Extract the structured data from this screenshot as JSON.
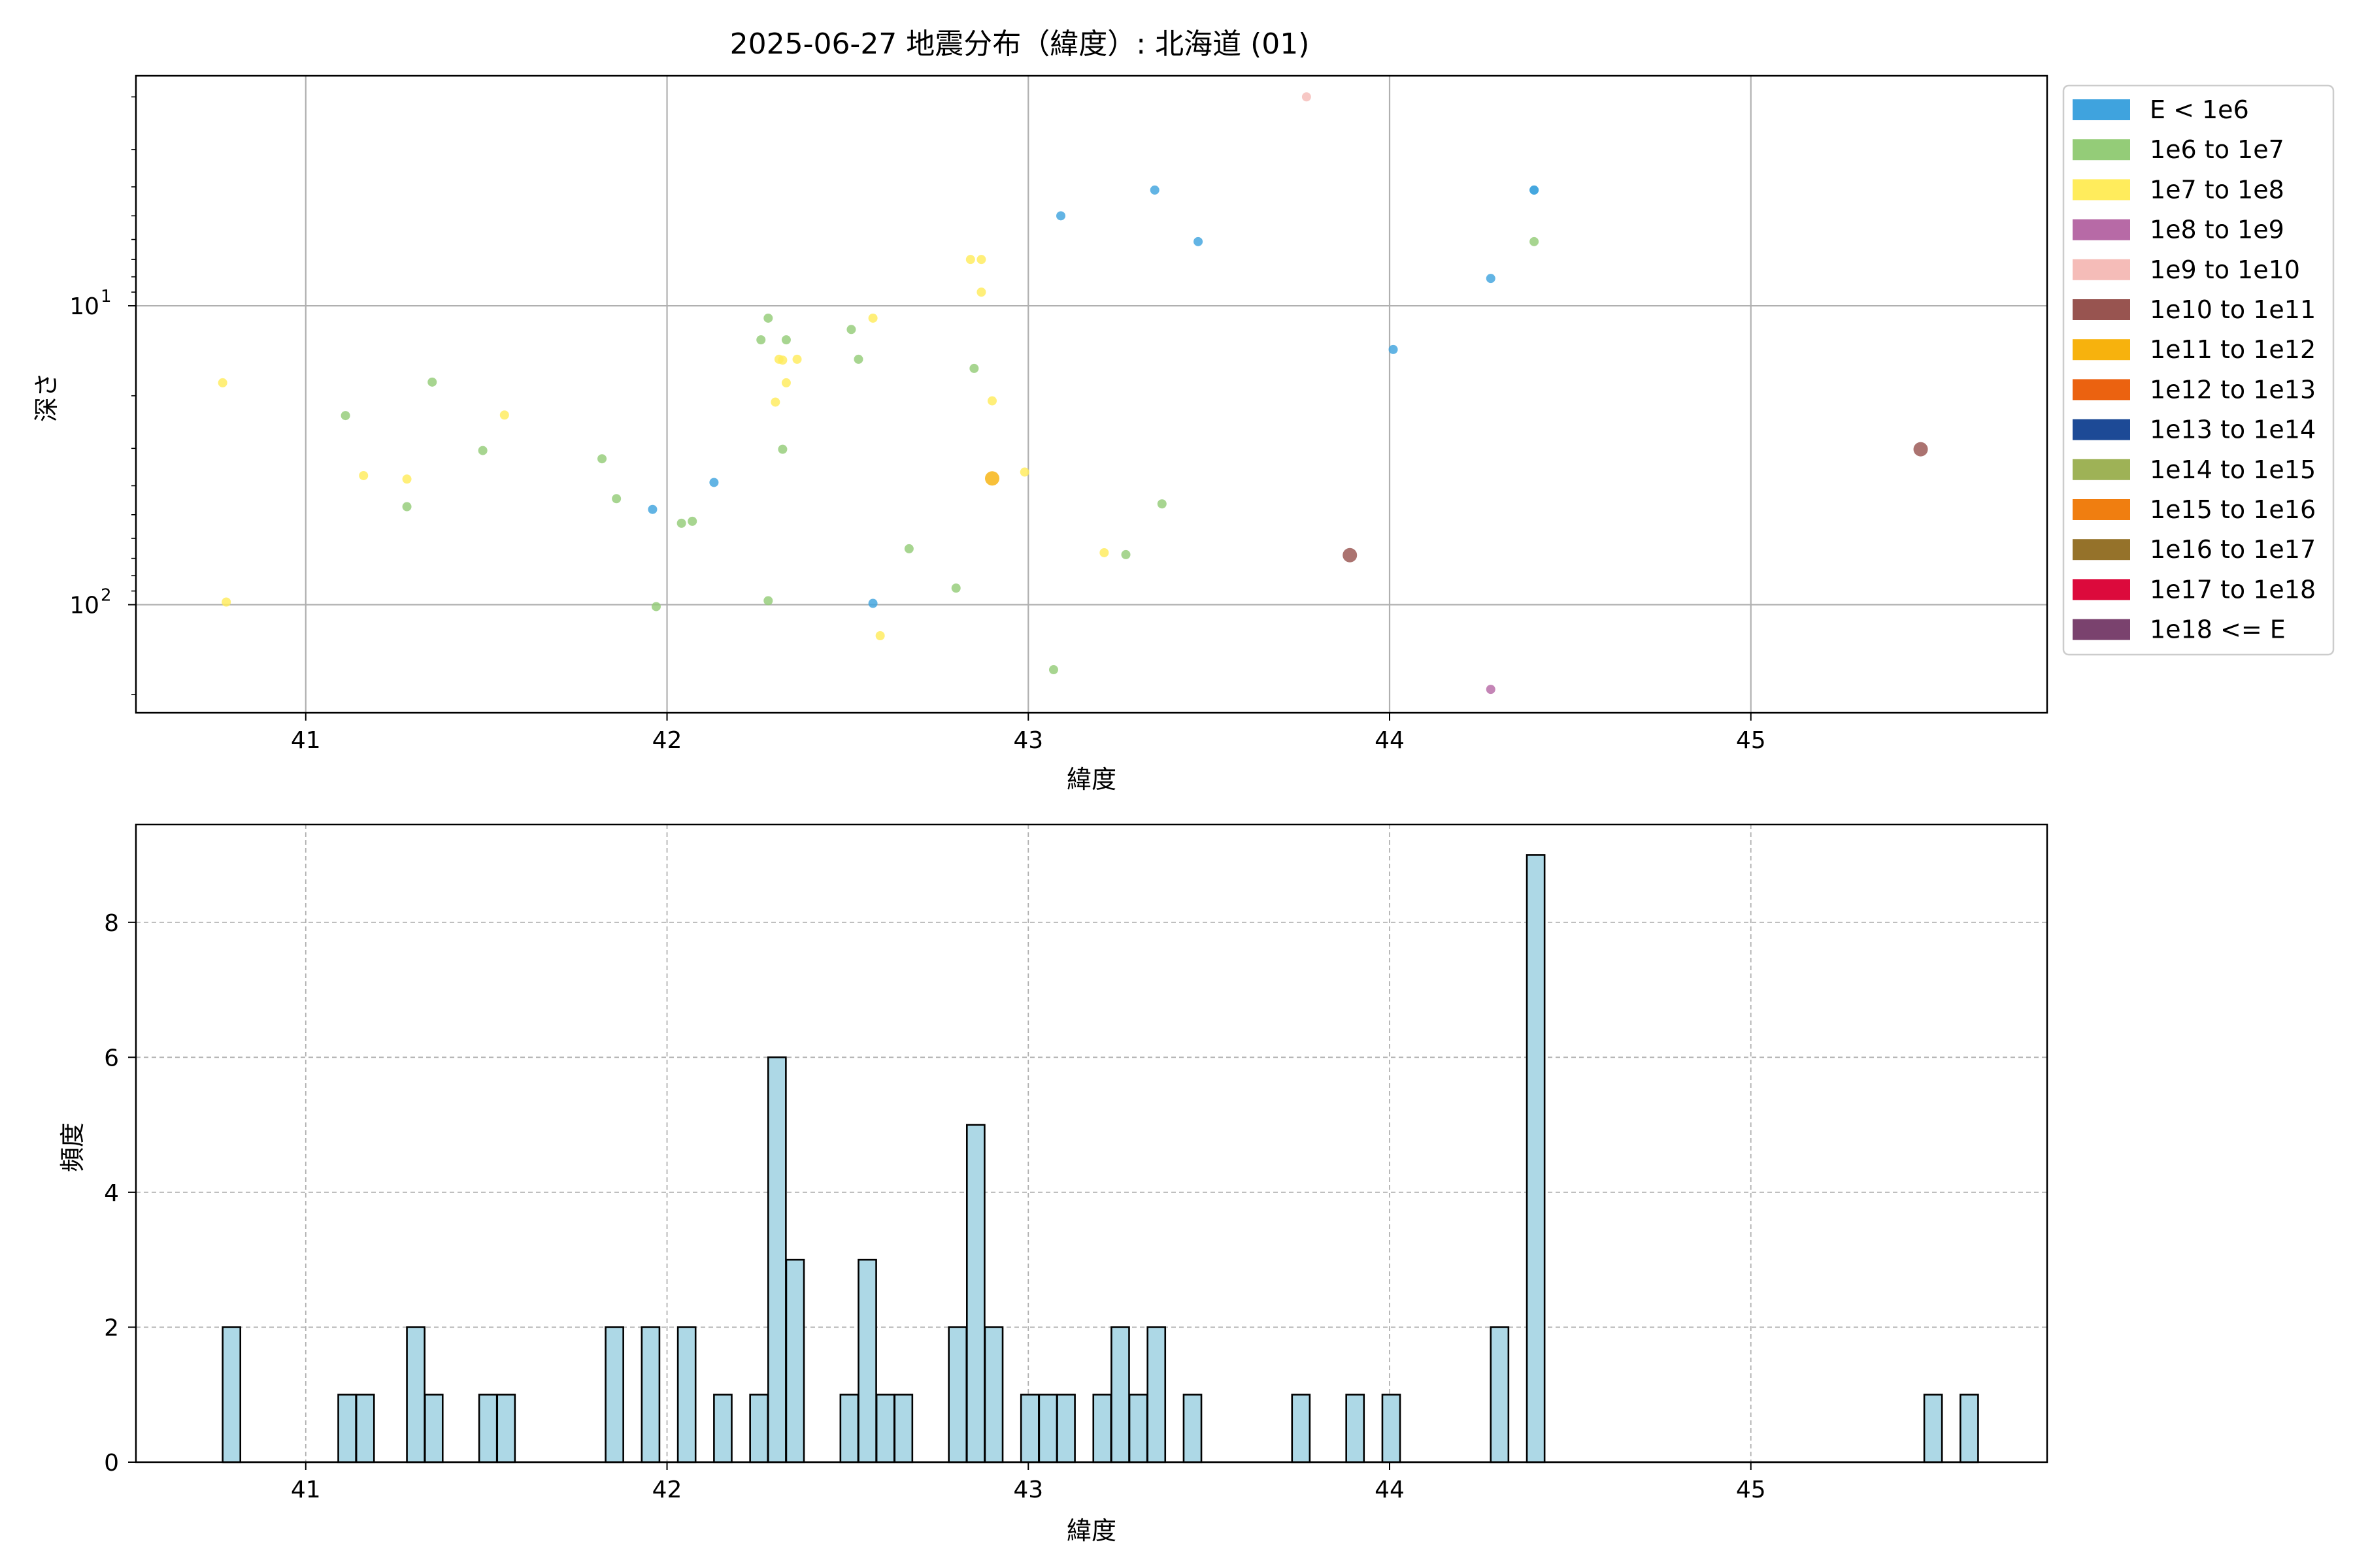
{
  "figure": {
    "title": "2025-06-27 地震分布（緯度）: 北海道 (01)"
  },
  "chart_data": [
    {
      "type": "scatter",
      "xlabel": "緯度",
      "ylabel": "深さ",
      "xlim": [
        40.53,
        45.82
      ],
      "xticks": [
        41,
        42,
        43,
        44,
        45
      ],
      "yscale": "log",
      "yinverted": true,
      "ylim": [
        230,
        1.7
      ],
      "yticks": [
        {
          "value": 10,
          "base": "10",
          "exp": "1"
        },
        {
          "value": 100,
          "base": "10",
          "exp": "2"
        }
      ],
      "grid": true,
      "legend": {
        "placement": "outside-right",
        "entries": [
          {
            "label": "E < 1e6",
            "color": "#3fa3de"
          },
          {
            "label": "1e6 to 1e7",
            "color": "#94cc78"
          },
          {
            "label": "1e7 to 1e8",
            "color": "#ffec5c"
          },
          {
            "label": "1e8 to 1e9",
            "color": "#b76aa6"
          },
          {
            "label": "1e9 to 1e10",
            "color": "#f5bcb8"
          },
          {
            "label": "1e10 to 1e11",
            "color": "#985450"
          },
          {
            "label": "1e11 to 1e12",
            "color": "#f7b20d"
          },
          {
            "label": "1e12 to 1e13",
            "color": "#eb6210"
          },
          {
            "label": "1e13 to 1e14",
            "color": "#1d4a96"
          },
          {
            "label": "1e14 to 1e15",
            "color": "#9eb256"
          },
          {
            "label": "1e15 to 1e16",
            "color": "#f07e10"
          },
          {
            "label": "1e16 to 1e17",
            "color": "#95722a"
          },
          {
            "label": "1e17 to 1e18",
            "color": "#dc0a3c"
          },
          {
            "label": "1e18 <= E",
            "color": "#7a426e"
          }
        ]
      },
      "points": [
        {
          "x": 40.77,
          "y": 18.1,
          "c": 2
        },
        {
          "x": 40.78,
          "y": 98,
          "c": 2
        },
        {
          "x": 41.11,
          "y": 23.3,
          "c": 1
        },
        {
          "x": 41.16,
          "y": 37,
          "c": 2
        },
        {
          "x": 41.28,
          "y": 38,
          "c": 2
        },
        {
          "x": 41.28,
          "y": 47,
          "c": 1
        },
        {
          "x": 41.35,
          "y": 18,
          "c": 1
        },
        {
          "x": 41.49,
          "y": 30.5,
          "c": 1
        },
        {
          "x": 41.55,
          "y": 23.2,
          "c": 2
        },
        {
          "x": 41.82,
          "y": 32.5,
          "c": 1
        },
        {
          "x": 41.86,
          "y": 44.2,
          "c": 1
        },
        {
          "x": 41.96,
          "y": 48,
          "c": 0
        },
        {
          "x": 41.97,
          "y": 101.5,
          "c": 1
        },
        {
          "x": 42.04,
          "y": 53.4,
          "c": 1
        },
        {
          "x": 42.07,
          "y": 52.6,
          "c": 1
        },
        {
          "x": 42.13,
          "y": 39,
          "c": 0
        },
        {
          "x": 42.26,
          "y": 13,
          "c": 1
        },
        {
          "x": 42.28,
          "y": 11,
          "c": 1
        },
        {
          "x": 42.28,
          "y": 97,
          "c": 1
        },
        {
          "x": 42.3,
          "y": 21,
          "c": 2
        },
        {
          "x": 42.31,
          "y": 15.1,
          "c": 2
        },
        {
          "x": 42.32,
          "y": 15.2,
          "c": 2
        },
        {
          "x": 42.32,
          "y": 30.2,
          "c": 1
        },
        {
          "x": 42.33,
          "y": 13,
          "c": 1
        },
        {
          "x": 42.33,
          "y": 18.1,
          "c": 2
        },
        {
          "x": 42.36,
          "y": 15.1,
          "c": 2
        },
        {
          "x": 42.51,
          "y": 12,
          "c": 1
        },
        {
          "x": 42.53,
          "y": 15.1,
          "c": 1
        },
        {
          "x": 42.57,
          "y": 11,
          "c": 2
        },
        {
          "x": 42.57,
          "y": 99,
          "c": 0
        },
        {
          "x": 42.59,
          "y": 127,
          "c": 2
        },
        {
          "x": 42.67,
          "y": 65,
          "c": 1
        },
        {
          "x": 42.8,
          "y": 88,
          "c": 1
        },
        {
          "x": 42.84,
          "y": 7,
          "c": 2
        },
        {
          "x": 42.85,
          "y": 16.2,
          "c": 1
        },
        {
          "x": 42.87,
          "y": 9,
          "c": 2
        },
        {
          "x": 42.87,
          "y": 7,
          "c": 2
        },
        {
          "x": 42.9,
          "y": 20.8,
          "c": 2
        },
        {
          "x": 42.9,
          "y": 37.8,
          "c": 6,
          "size": "large"
        },
        {
          "x": 42.99,
          "y": 36,
          "c": 2
        },
        {
          "x": 43.07,
          "y": 165,
          "c": 1
        },
        {
          "x": 43.09,
          "y": 5,
          "c": 0
        },
        {
          "x": 43.21,
          "y": 67,
          "c": 2
        },
        {
          "x": 43.27,
          "y": 68,
          "c": 1
        },
        {
          "x": 43.35,
          "y": 4.1,
          "c": 0
        },
        {
          "x": 43.37,
          "y": 46,
          "c": 1
        },
        {
          "x": 43.47,
          "y": 6.1,
          "c": 0
        },
        {
          "x": 43.77,
          "y": 2.0,
          "c": 4
        },
        {
          "x": 43.89,
          "y": 68.3,
          "c": 5,
          "size": "large"
        },
        {
          "x": 44.01,
          "y": 14,
          "c": 0
        },
        {
          "x": 44.28,
          "y": 8.1,
          "c": 0
        },
        {
          "x": 44.28,
          "y": 192,
          "c": 3
        },
        {
          "x": 44.4,
          "y": 4.1,
          "c": 0
        },
        {
          "x": 44.4,
          "y": 4.1,
          "c": 0
        },
        {
          "x": 44.4,
          "y": 6.1,
          "c": 1
        },
        {
          "x": 45.47,
          "y": 30.2,
          "c": 5,
          "size": "large"
        }
      ]
    },
    {
      "type": "bar",
      "subtype": "histogram",
      "xlabel": "緯度",
      "ylabel": "頻度",
      "xlim": [
        40.53,
        45.82
      ],
      "xticks": [
        41,
        42,
        43,
        44,
        45
      ],
      "ylim": [
        0,
        9.45
      ],
      "yticks": [
        0,
        2,
        4,
        6,
        8
      ],
      "bin_width": 0.049,
      "bar_color": "#add8e6",
      "edge_color": "#000000",
      "grid": "dashed",
      "bins": [
        {
          "x": 40.77,
          "count": 2
        },
        {
          "x": 41.09,
          "count": 1
        },
        {
          "x": 41.14,
          "count": 1
        },
        {
          "x": 41.28,
          "count": 2
        },
        {
          "x": 41.33,
          "count": 1
        },
        {
          "x": 41.48,
          "count": 1
        },
        {
          "x": 41.53,
          "count": 1
        },
        {
          "x": 41.83,
          "count": 2
        },
        {
          "x": 41.93,
          "count": 2
        },
        {
          "x": 42.03,
          "count": 2
        },
        {
          "x": 42.13,
          "count": 1
        },
        {
          "x": 42.23,
          "count": 1
        },
        {
          "x": 42.28,
          "count": 6
        },
        {
          "x": 42.33,
          "count": 3
        },
        {
          "x": 42.48,
          "count": 1
        },
        {
          "x": 42.53,
          "count": 3
        },
        {
          "x": 42.58,
          "count": 1
        },
        {
          "x": 42.63,
          "count": 1
        },
        {
          "x": 42.78,
          "count": 2
        },
        {
          "x": 42.83,
          "count": 5
        },
        {
          "x": 42.88,
          "count": 2
        },
        {
          "x": 42.98,
          "count": 1
        },
        {
          "x": 43.03,
          "count": 1
        },
        {
          "x": 43.08,
          "count": 1
        },
        {
          "x": 43.18,
          "count": 1
        },
        {
          "x": 43.23,
          "count": 2
        },
        {
          "x": 43.28,
          "count": 1
        },
        {
          "x": 43.33,
          "count": 2
        },
        {
          "x": 43.43,
          "count": 1
        },
        {
          "x": 43.73,
          "count": 1
        },
        {
          "x": 43.88,
          "count": 1
        },
        {
          "x": 43.98,
          "count": 1
        },
        {
          "x": 44.28,
          "count": 2
        },
        {
          "x": 44.38,
          "count": 9
        },
        {
          "x": 45.48,
          "count": 1
        },
        {
          "x": 45.58,
          "count": 1
        }
      ]
    }
  ]
}
